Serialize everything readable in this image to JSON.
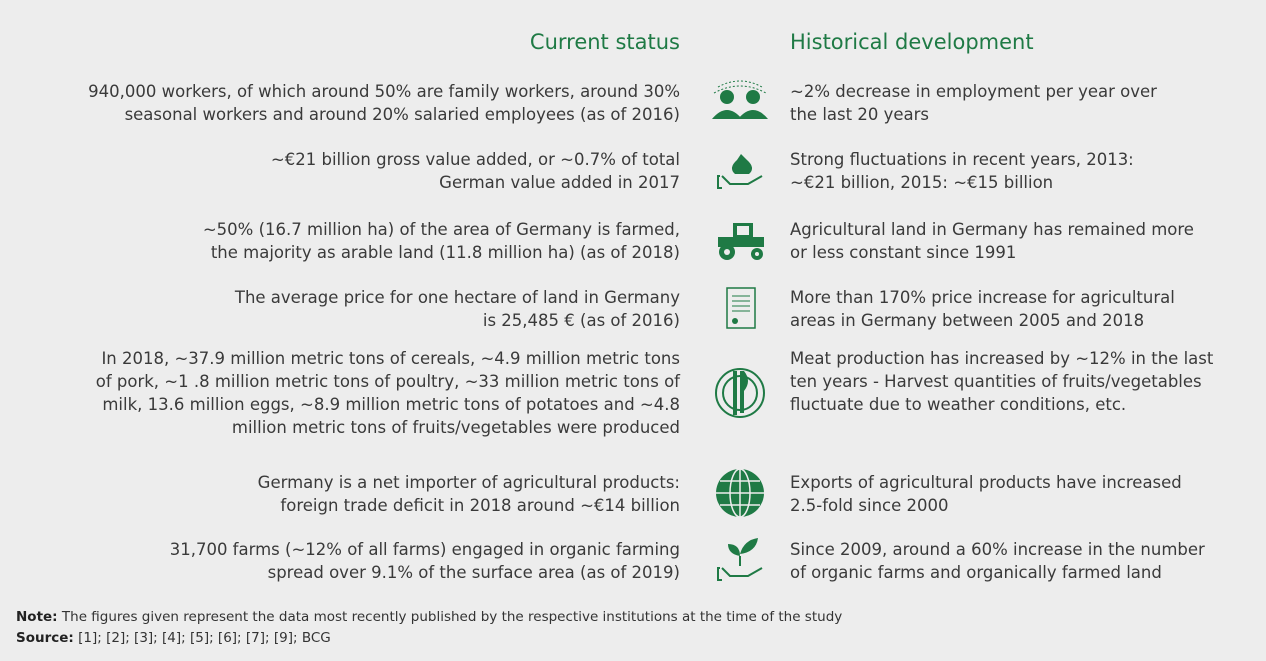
{
  "header": {
    "current": "Current status",
    "historical": "Historical development"
  },
  "rows": [
    {
      "current": [
        "940,000 workers, of which around 50% are family workers, around 30%",
        "seasonal workers and around 20% salaried employees (as of 2016)"
      ],
      "historical": [
        "~2% decrease in employment per year over",
        "the last 20 years"
      ]
    },
    {
      "current": [
        "~€21 billion gross value added, or ~0.7% of total",
        "German value added in 2017"
      ],
      "historical": [
        "Strong fluctuations in recent years, 2013:",
        "~€21 billion, 2015: ~€15 billion"
      ]
    },
    {
      "current": [
        "~50% (16.7 million ha) of the area of Germany is farmed,",
        "the majority as arable land (11.8 million ha) (as of 2018)"
      ],
      "historical": [
        "Agricultural land in Germany has remained more",
        "or less constant since 1991"
      ]
    },
    {
      "current": [
        "The average price for one hectare of land in Germany",
        "is 25,485 € (as of 2016)"
      ],
      "historical": [
        "More than 170% price increase for agricultural",
        "areas in Germany between 2005 and 2018"
      ]
    },
    {
      "current": [
        "In 2018, ~37.9 million metric tons of cereals, ~4.9 million metric tons",
        "of pork, ~1 .8 million metric tons of poultry, ~33 million metric tons of",
        "milk, 13.6 million eggs, ~8.9 million metric tons of potatoes and ~4.8",
        "million metric tons of fruits/vegetables were produced"
      ],
      "historical": [
        "Meat production has increased by ~12% in the last",
        "ten years - Harvest quantities of fruits/vegetables",
        "fluctuate due to weather conditions, etc."
      ]
    },
    {
      "current": [
        "Germany is a net importer of agricultural products:",
        "foreign trade deficit in 2018 around ~€14 billion"
      ],
      "historical": [
        "Exports of agricultural products have increased",
        "2.5-fold since 2000"
      ]
    },
    {
      "current": [
        "31,700 farms (~12% of all farms) engaged in organic farming",
        "spread over 9.1% of the surface area (as of 2019)"
      ],
      "historical": [
        "Since 2009, around a 60% increase in the number",
        "of organic farms and organically farmed land"
      ]
    }
  ],
  "note": {
    "label": "Note:",
    "text": "The figures given represent the data most recently published by the respective institutions at the time of the study"
  },
  "source": {
    "label": "Source:",
    "text": "[1]; [2]; [3]; [4]; [5]; [6]; [7]; [9]; BCG"
  }
}
